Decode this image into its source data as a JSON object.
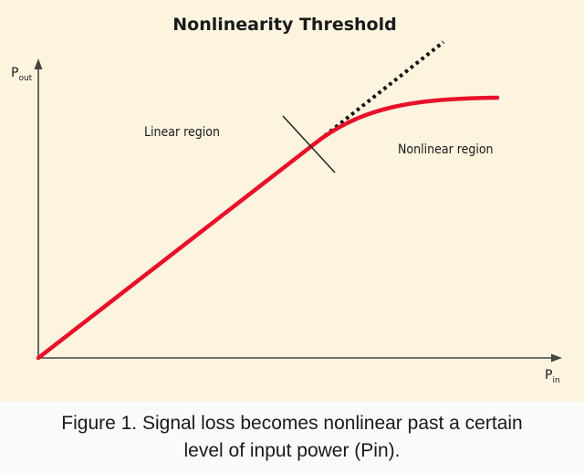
{
  "figure": {
    "title": "Nonlinearity Threshold",
    "y_axis": {
      "symbol": "P",
      "subscript": "out"
    },
    "x_axis": {
      "symbol": "P",
      "subscript": "in"
    },
    "linear_region_label": "Linear region",
    "nonlinear_region_label": "Nonlinear region"
  },
  "colors": {
    "background": "#fdf4df",
    "curve": "#e8102a",
    "axis": "#444444",
    "extrapolation": "#111111"
  },
  "caption": {
    "line1": "Figure 1. Signal loss becomes nonlinear past a certain",
    "line2": "level of input power (Pin)."
  }
}
